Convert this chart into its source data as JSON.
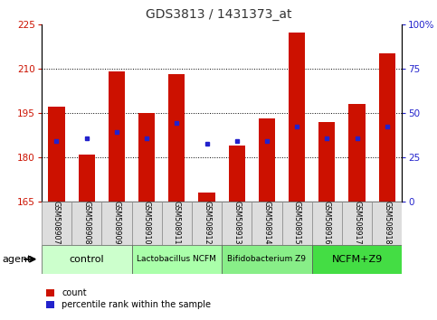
{
  "title": "GDS3813 / 1431373_at",
  "samples": [
    "GSM508907",
    "GSM508908",
    "GSM508909",
    "GSM508910",
    "GSM508911",
    "GSM508912",
    "GSM508913",
    "GSM508914",
    "GSM508915",
    "GSM508916",
    "GSM508917",
    "GSM508918"
  ],
  "bar_heights": [
    197,
    181,
    209,
    195,
    208,
    168,
    184,
    193,
    222,
    192,
    198,
    215
  ],
  "percentile_values": [
    185.5,
    186.5,
    188.5,
    186.5,
    191.5,
    184.5,
    185.5,
    185.5,
    190.5,
    186.5,
    186.5,
    190.5
  ],
  "ylim_left": [
    165,
    225
  ],
  "ylim_right": [
    0,
    100
  ],
  "yticks_left": [
    165,
    180,
    195,
    210,
    225
  ],
  "yticks_right": [
    0,
    25,
    50,
    75,
    100
  ],
  "bar_color": "#CC1100",
  "dot_color": "#2222CC",
  "background_fig": "#FFFFFF",
  "groups": [
    {
      "label": "control",
      "start": 0,
      "end": 3,
      "color": "#CCFFCC"
    },
    {
      "label": "Lactobacillus NCFM",
      "start": 3,
      "end": 6,
      "color": "#AAFFAA"
    },
    {
      "label": "Bifidobacterium Z9",
      "start": 6,
      "end": 9,
      "color": "#88EE88"
    },
    {
      "label": "NCFM+Z9",
      "start": 9,
      "end": 12,
      "color": "#44DD44"
    }
  ],
  "legend_count": "count",
  "legend_percentile": "percentile rank within the sample",
  "left_tick_color": "#CC1100",
  "right_tick_color": "#2222CC",
  "grid_lines": [
    180,
    195,
    210
  ],
  "bar_width": 0.55
}
